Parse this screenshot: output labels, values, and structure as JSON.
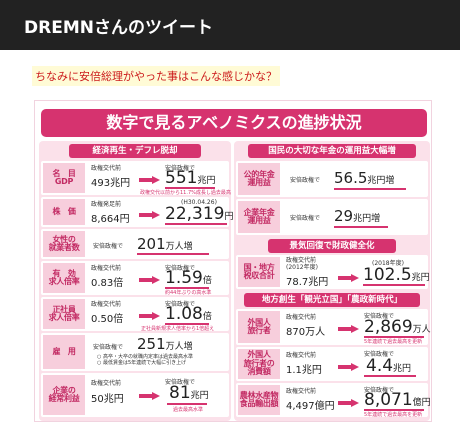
{
  "header": {
    "title": "DREMNさんのツイート"
  },
  "tweet": {
    "text": "ちなみに安倍総理がやった事はこんな感じかな？"
  },
  "infographic": {
    "title": "数字で見るアベノミクスの進捗状況",
    "left_section": "経済再生・デフレ脱却",
    "rows": [
      {
        "label": "名　目\nGDP",
        "before_label": "政権交代前",
        "before": "493兆円",
        "after_label": "安倍政権で",
        "after": "551",
        "unit": "兆円",
        "note": "政権交代以前から11.7%成長し過去最高"
      },
      {
        "label": "株　価",
        "before_label": "政権発足前",
        "before": "8,664円",
        "after_label": "(H30.04.26)",
        "after": "22,319",
        "unit": "円"
      },
      {
        "label": "女性の\n就業者数",
        "after_label": "安倍政権で",
        "after": "201",
        "unit": "万人増"
      },
      {
        "label": "有　効\n求人倍率",
        "before_label": "政権交代前",
        "before": "0.83倍",
        "after_label": "安倍政権で",
        "after": "1.59",
        "unit": "倍",
        "note": "約44年ぶりの高水準"
      },
      {
        "label": "正社員\n求人倍率",
        "before_label": "政権交代前",
        "before": "0.50倍",
        "after_label": "安倍政権で",
        "after": "1.08",
        "unit": "倍",
        "note": "正社員新規求人倍率から1倍超え"
      },
      {
        "label": "雇　用",
        "after_label": "安倍政権で",
        "after": "251",
        "unit": "万人増",
        "note": "○ 高卒・大卒の就職内定率は過去最高水準\n○ 最低賃金は5年連続で大幅に引き上げ"
      },
      {
        "label": "企業の\n経常利益",
        "before_label": "政権交代前",
        "before": "50兆円",
        "after_label": "安倍政権で",
        "after": "81",
        "unit": "兆円",
        "note": "過去最高水準"
      }
    ],
    "right_section_1": "国民の大切な年金の運用益大幅増",
    "pension": [
      {
        "label": "公的年金\n運用益",
        "after_label": "安倍政権で",
        "after": "56.5",
        "unit": "兆円増"
      },
      {
        "label": "企業年金\n運用益",
        "after_label": "安倍政権で",
        "after": "29",
        "unit": "兆円増"
      }
    ],
    "right_section_2": "景気回復で財政健全化",
    "tax": {
      "label": "国・地方\n税収合計",
      "before_label": "政権交代前\n(2012年度)",
      "before": "78.7兆円",
      "after_label": "(2018年度)",
      "after": "102.5",
      "unit": "兆円"
    },
    "right_section_3": "地方創生「観光立国」「農政新時代」",
    "regional": [
      {
        "label": "外国人\n旅行者",
        "before_label": "政権交代前",
        "before": "870万人",
        "after_label": "安倍政権で",
        "after": "2,869",
        "unit": "万人",
        "note": "5年連続で過去最高を更新"
      },
      {
        "label": "外国人\n旅行者の\n消費額",
        "before_label": "政権交代前",
        "before": "1.1兆円",
        "after_label": "安倍政権で",
        "after": "4.4",
        "unit": "兆円"
      },
      {
        "label": "農林水産物\n食品輸出額",
        "before_label": "政権交代前",
        "before": "4,497億円",
        "after_label": "安倍政権で",
        "after": "8,071",
        "unit": "億円",
        "note": "5年連続で過去最高を更新"
      }
    ]
  },
  "colors": {
    "accent": "#d6336f",
    "header_bg": "#222222",
    "tweet_text": "#cc1b1b"
  }
}
